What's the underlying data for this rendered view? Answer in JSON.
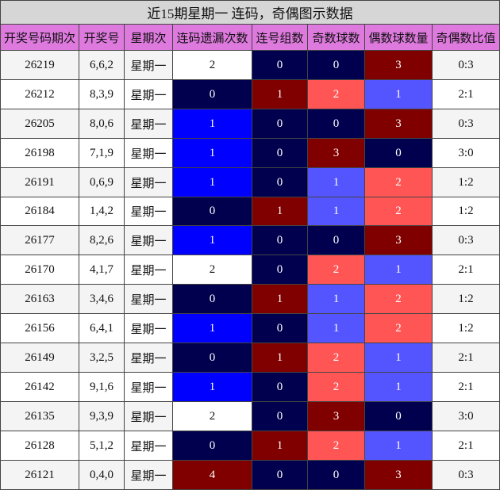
{
  "table": {
    "title": "近15期星期一 连码，奇偶图示数据",
    "headers": [
      "开奖号码期次",
      "开奖号",
      "星期次",
      "连码遗漏次数",
      "连号组数",
      "奇数球数",
      "偶数球数量",
      "奇偶数比值"
    ],
    "rows": [
      [
        "26219",
        "6,6,2",
        "星期一",
        "2",
        "0",
        "0",
        "3",
        "0:3"
      ],
      [
        "26212",
        "8,3,9",
        "星期一",
        "0",
        "1",
        "2",
        "1",
        "2:1"
      ],
      [
        "26205",
        "8,0,6",
        "星期一",
        "1",
        "0",
        "0",
        "3",
        "0:3"
      ],
      [
        "26198",
        "7,1,9",
        "星期一",
        "1",
        "0",
        "3",
        "0",
        "3:0"
      ],
      [
        "26191",
        "0,6,9",
        "星期一",
        "1",
        "0",
        "1",
        "2",
        "1:2"
      ],
      [
        "26184",
        "1,4,2",
        "星期一",
        "0",
        "1",
        "1",
        "2",
        "1:2"
      ],
      [
        "26177",
        "8,2,6",
        "星期一",
        "1",
        "0",
        "0",
        "3",
        "0:3"
      ],
      [
        "26170",
        "4,1,7",
        "星期一",
        "2",
        "0",
        "2",
        "1",
        "2:1"
      ],
      [
        "26163",
        "3,4,6",
        "星期一",
        "0",
        "1",
        "1",
        "2",
        "1:2"
      ],
      [
        "26156",
        "6,4,1",
        "星期一",
        "1",
        "0",
        "1",
        "2",
        "1:2"
      ],
      [
        "26149",
        "3,2,5",
        "星期一",
        "0",
        "1",
        "2",
        "1",
        "2:1"
      ],
      [
        "26142",
        "9,1,6",
        "星期一",
        "1",
        "0",
        "2",
        "1",
        "2:1"
      ],
      [
        "26135",
        "9,3,9",
        "星期一",
        "2",
        "0",
        "3",
        "0",
        "3:0"
      ],
      [
        "26128",
        "5,1,2",
        "星期一",
        "0",
        "1",
        "2",
        "1",
        "2:1"
      ],
      [
        "26121",
        "0,4,0",
        "星期一",
        "4",
        "0",
        "0",
        "3",
        "0:3"
      ]
    ],
    "cell_colors": [
      [
        "#ffffff",
        "#00004e",
        "#00004e",
        "#800000"
      ],
      [
        "#00004e",
        "#800000",
        "#ff5555",
        "#5555ff"
      ],
      [
        "#0000ff",
        "#00004e",
        "#00004e",
        "#800000"
      ],
      [
        "#0000ff",
        "#00004e",
        "#800000",
        "#00004e"
      ],
      [
        "#0000ff",
        "#00004e",
        "#5555ff",
        "#ff5555"
      ],
      [
        "#00004e",
        "#800000",
        "#5555ff",
        "#ff5555"
      ],
      [
        "#0000ff",
        "#00004e",
        "#00004e",
        "#800000"
      ],
      [
        "#ffffff",
        "#00004e",
        "#ff5555",
        "#5555ff"
      ],
      [
        "#00004e",
        "#800000",
        "#5555ff",
        "#ff5555"
      ],
      [
        "#0000ff",
        "#00004e",
        "#5555ff",
        "#ff5555"
      ],
      [
        "#00004e",
        "#800000",
        "#ff5555",
        "#5555ff"
      ],
      [
        "#0000ff",
        "#00004e",
        "#ff5555",
        "#5555ff"
      ],
      [
        "#ffffff",
        "#00004e",
        "#800000",
        "#00004e"
      ],
      [
        "#00004e",
        "#800000",
        "#ff5555",
        "#5555ff"
      ],
      [
        "#800000",
        "#00004e",
        "#00004e",
        "#800000"
      ]
    ]
  }
}
